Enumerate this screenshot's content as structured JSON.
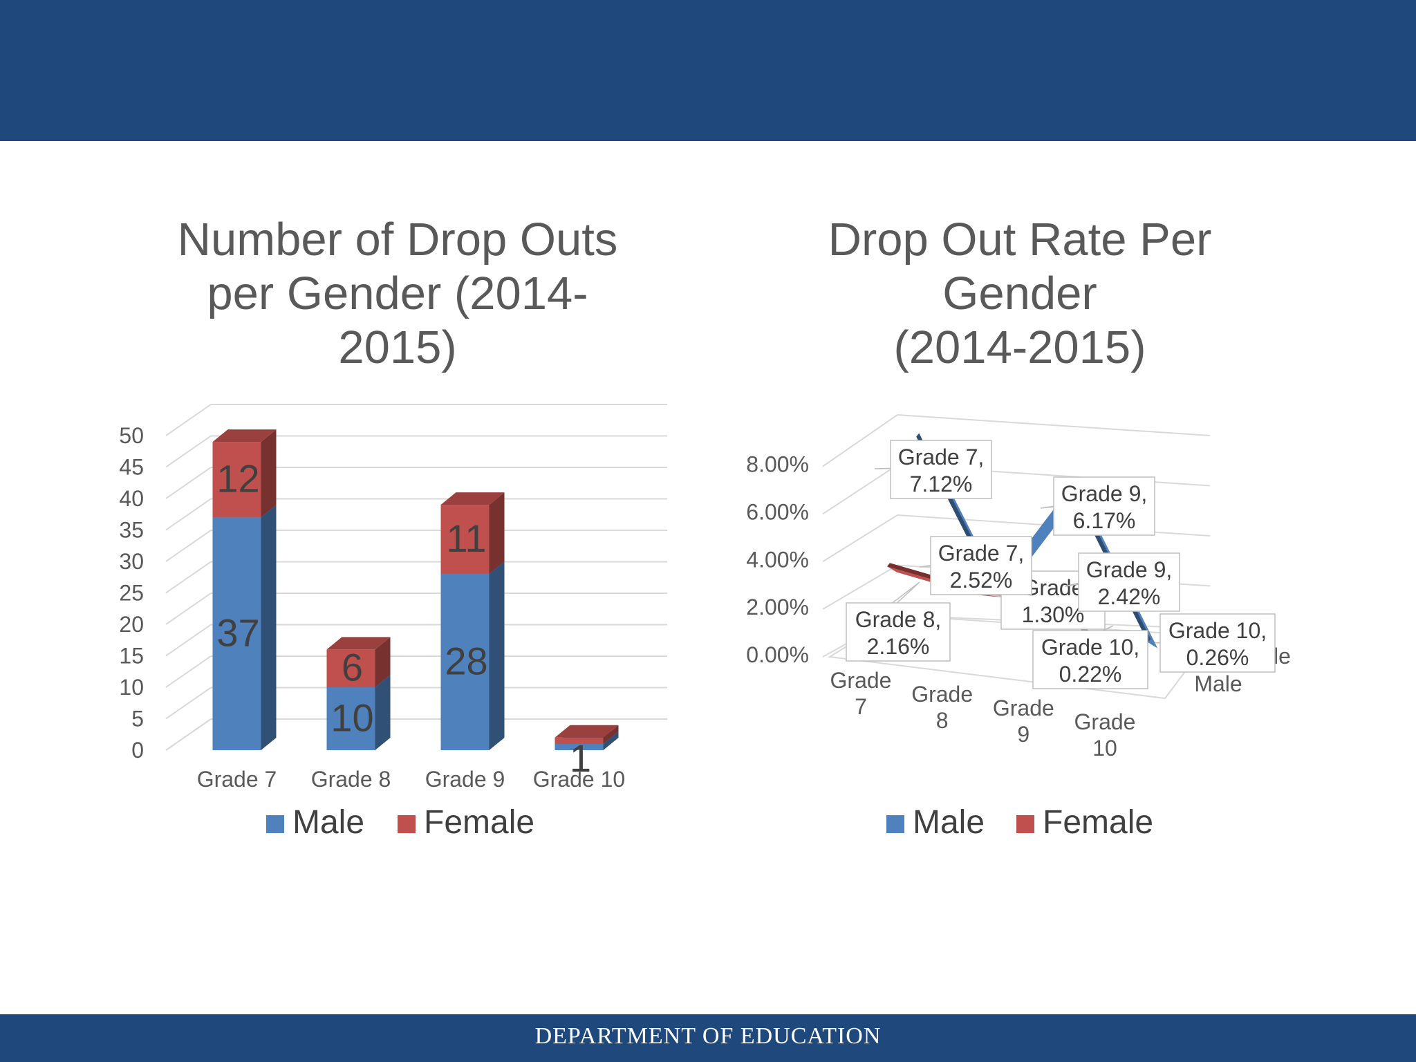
{
  "slide": {
    "footer": "DEPARTMENT OF EDUCATION"
  },
  "colors": {
    "header": "#1f497d",
    "male": "#4f81bd",
    "female": "#c0504d"
  },
  "chart_data": [
    {
      "type": "bar",
      "stacked": true,
      "three_d": true,
      "title": "Number of Drop Outs per Gender (2014-2015)",
      "categories": [
        "Grade 7",
        "Grade 8",
        "Grade 9",
        "Grade 10"
      ],
      "series": [
        {
          "name": "Male",
          "values": [
            37,
            10,
            28,
            1
          ],
          "labels": [
            "37",
            "10",
            "28",
            "1"
          ]
        },
        {
          "name": "Female",
          "values": [
            12,
            6,
            11,
            1
          ],
          "labels": [
            "12",
            "6",
            "11",
            ""
          ]
        }
      ],
      "y_ticks": [
        "0",
        "5",
        "10",
        "15",
        "20",
        "25",
        "30",
        "35",
        "40",
        "45",
        "50"
      ],
      "ylim": [
        0,
        50
      ],
      "grid": true,
      "legend": "bottom"
    },
    {
      "type": "line",
      "three_d": true,
      "title": "Drop Out Rate Per Gender (2014-2015)",
      "categories": [
        [
          "Grade",
          "7"
        ],
        [
          "Grade",
          "8"
        ],
        [
          "Grade",
          "9"
        ],
        [
          "Grade",
          "10"
        ]
      ],
      "series": [
        {
          "name": "Male",
          "values": [
            7.12,
            1.3,
            6.17,
            0.22
          ],
          "labels": [
            [
              "Grade 7,",
              "7.12%"
            ],
            [
              "Grade",
              "1.30%"
            ],
            [
              "Grade 9,",
              "6.17%"
            ],
            [
              "Grade 10,",
              "0.22%"
            ]
          ]
        },
        {
          "name": "Female",
          "values": [
            2.52,
            2.16,
            2.42,
            0.26
          ],
          "labels": [
            [
              "Grade 7,",
              "2.52%"
            ],
            [
              "Grade 8,",
              "2.16%"
            ],
            [
              "Grade 9,",
              "2.42%"
            ],
            [
              "Grade 10,",
              "0.26%"
            ]
          ]
        }
      ],
      "y_ticks": [
        "0.00%",
        "2.00%",
        "4.00%",
        "6.00%",
        "8.00%"
      ],
      "ylim": [
        0,
        8
      ],
      "depth_axis_labels": [
        "le",
        "Male"
      ],
      "grid": true,
      "legend": "bottom"
    }
  ]
}
